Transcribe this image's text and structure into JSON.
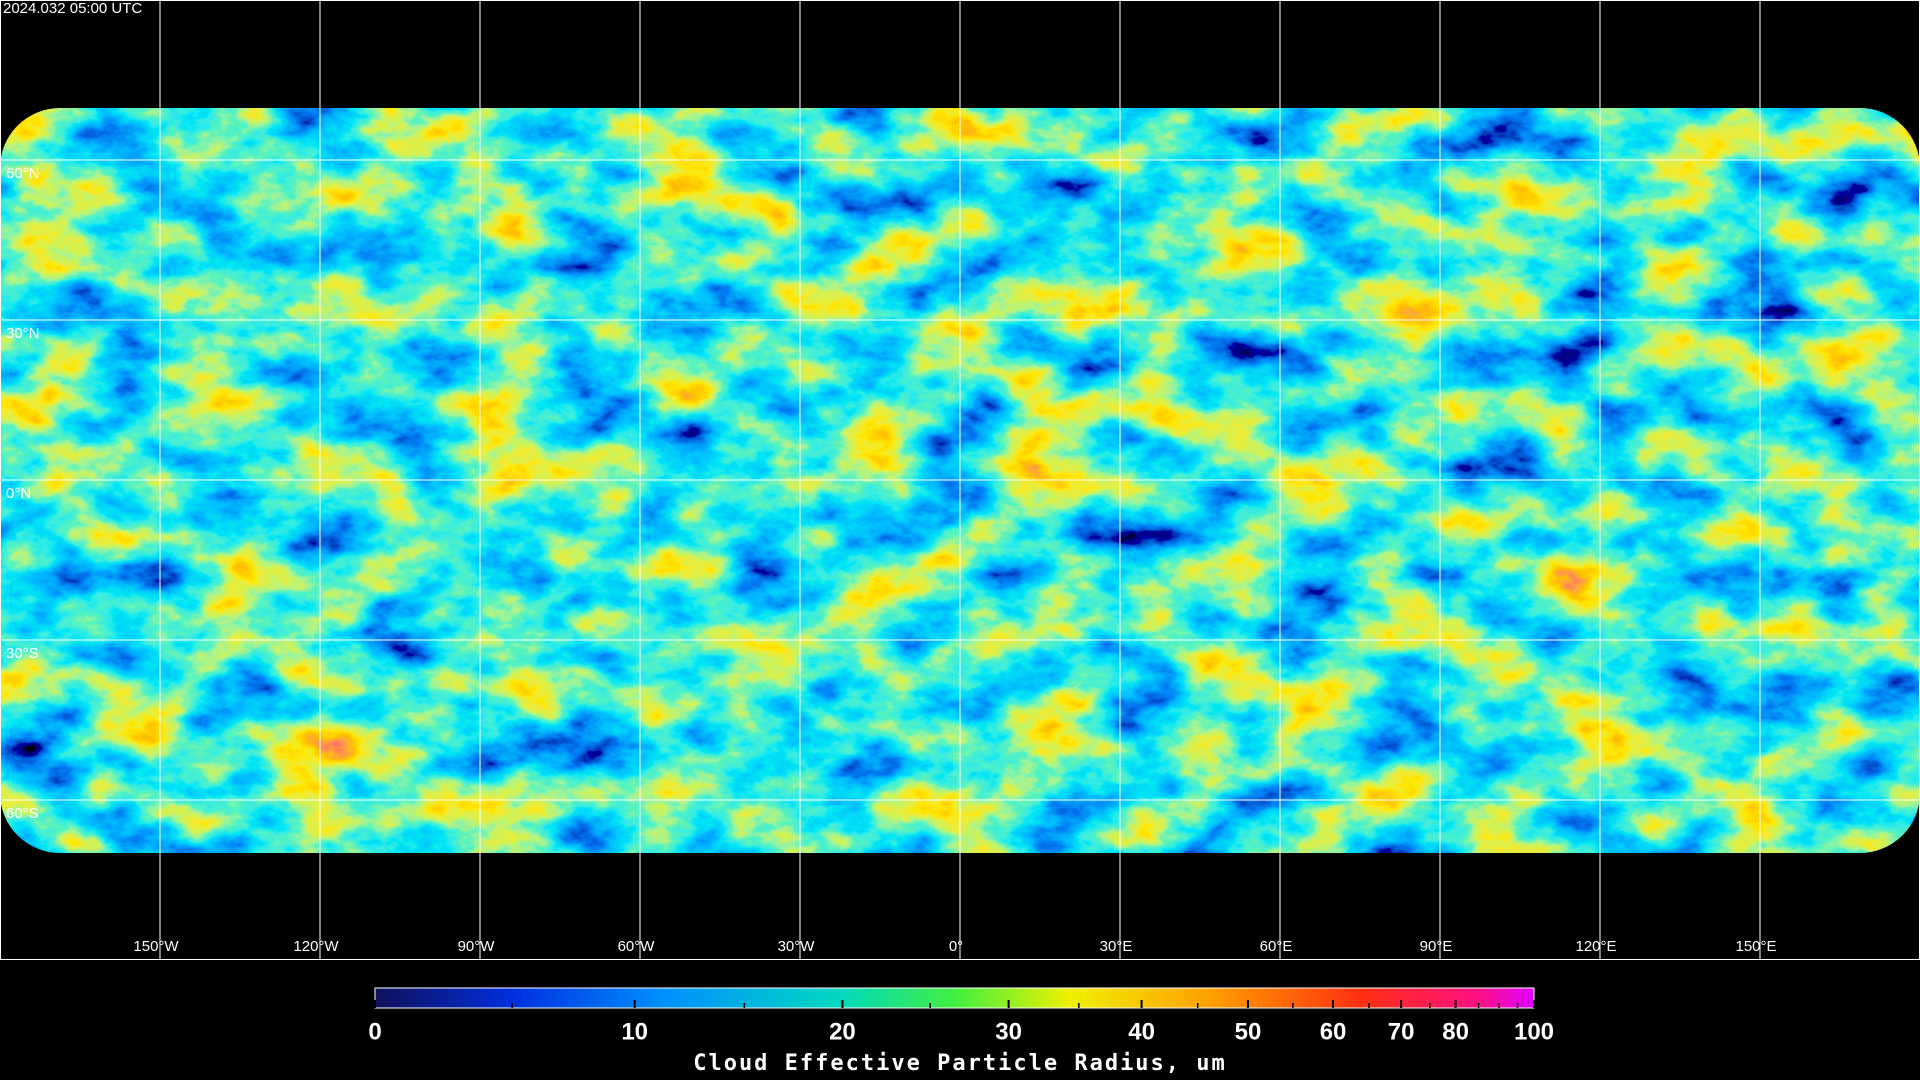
{
  "header": {
    "timestamp": "2024.032 05:00 UTC"
  },
  "chart_data": {
    "type": "map",
    "xlim": [
      -180,
      180
    ],
    "ylim": [
      -90,
      90
    ],
    "lat_ticks": [
      {
        "value": 60,
        "label": "60°N"
      },
      {
        "value": 30,
        "label": "30°N"
      },
      {
        "value": 0,
        "label": "0°N"
      },
      {
        "value": -30,
        "label": "30°S"
      },
      {
        "value": -60,
        "label": "60°S"
      }
    ],
    "lon_ticks": [
      {
        "value": -150,
        "label": "150°W"
      },
      {
        "value": -120,
        "label": "120°W"
      },
      {
        "value": -90,
        "label": "90°W"
      },
      {
        "value": -60,
        "label": "60°W"
      },
      {
        "value": -30,
        "label": "30°W"
      },
      {
        "value": 0,
        "label": "0°"
      },
      {
        "value": 30,
        "label": "30°E"
      },
      {
        "value": 60,
        "label": "60°E"
      },
      {
        "value": 90,
        "label": "90°E"
      },
      {
        "value": 120,
        "label": "120°E"
      },
      {
        "value": 150,
        "label": "150°E"
      }
    ],
    "colorbar": {
      "title": "Cloud Effective Particle Radius, um",
      "lim": [
        0,
        100
      ],
      "ticks": [
        0,
        10,
        20,
        30,
        40,
        50,
        60,
        70,
        80,
        100
      ],
      "minor_ticks": [
        5,
        15,
        25,
        35,
        45,
        55,
        65,
        75,
        85,
        90,
        95
      ]
    }
  }
}
